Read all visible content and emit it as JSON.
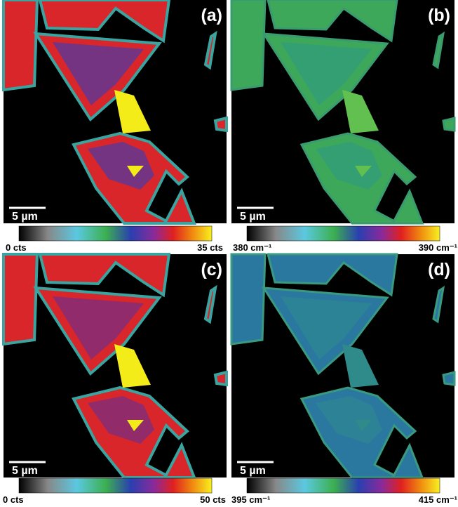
{
  "panels": [
    {
      "label": "(a)",
      "scale_bar": "5 µm",
      "colorbar": {
        "min": "0 cts",
        "max": "35 cts"
      }
    },
    {
      "label": "(b)",
      "scale_bar": "5 µm",
      "colorbar": {
        "min": "380 cm⁻¹",
        "max": "390 cm⁻¹"
      }
    },
    {
      "label": "(c)",
      "scale_bar": "5 µm",
      "colorbar": {
        "min": "0 cts",
        "max": "50 cts"
      }
    },
    {
      "label": "(d)",
      "scale_bar": "5 µm",
      "colorbar": {
        "min": "395 cm⁻¹",
        "max": "415 cm⁻¹"
      }
    }
  ]
}
